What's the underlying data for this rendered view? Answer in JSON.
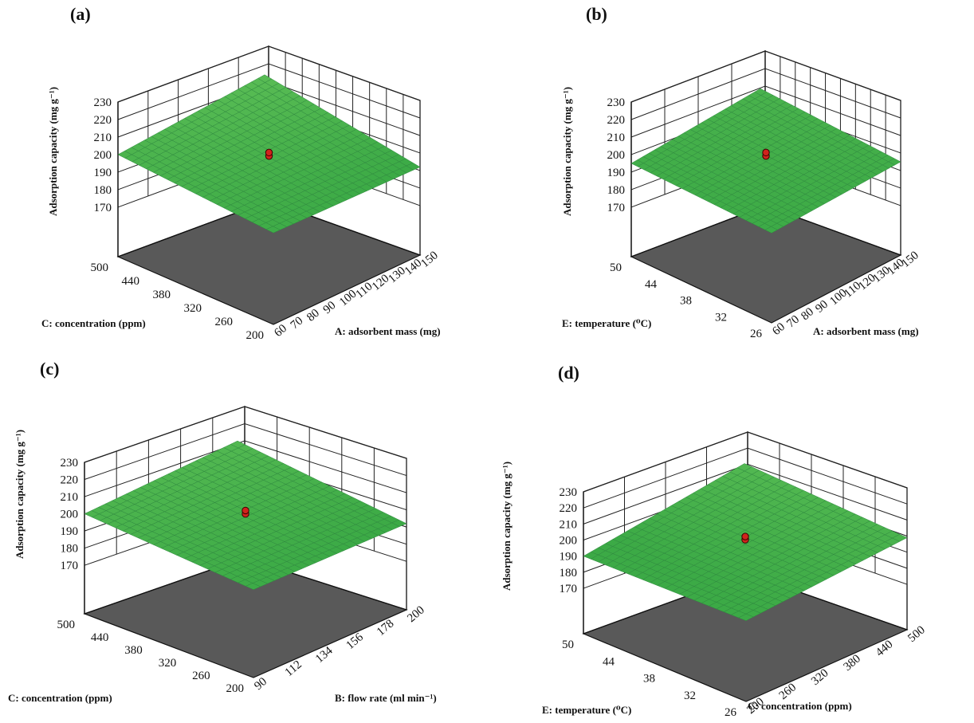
{
  "chart_data": [
    {
      "type": "surface",
      "panel_label": "(a)",
      "zlabel": "Adsorption capacity (mg g⁻¹)",
      "zlim": [
        170,
        230
      ],
      "zticks": [
        "170",
        "180",
        "190",
        "200",
        "210",
        "220",
        "230"
      ],
      "left_axis": {
        "label": "C: concentration (ppm)",
        "range": [
          200,
          500
        ],
        "ticks": [
          "500",
          "440",
          "380",
          "320",
          "260",
          "200"
        ]
      },
      "right_axis": {
        "label": "A: adsorbent mass (mg)",
        "range": [
          60,
          150
        ],
        "ticks": [
          "60",
          "70",
          "80",
          "90",
          "100",
          "110",
          "120",
          "130",
          "140",
          "150"
        ]
      },
      "surface_corners_z": {
        "left_far_high": 200,
        "front": 194,
        "right_far_high": 192,
        "back": 206
      },
      "center_points": [
        196,
        198
      ],
      "surface_color": "#3cb556",
      "contour_color": "#53d15a",
      "floor_color": "#595959"
    },
    {
      "type": "surface",
      "panel_label": "(b)",
      "zlabel": "Adsorption capacity (mg g⁻¹)",
      "zlim": [
        170,
        230
      ],
      "zticks": [
        "170",
        "180",
        "190",
        "200",
        "210",
        "220",
        "230"
      ],
      "left_axis": {
        "label": "E: temperature (⁰C)",
        "range": [
          26,
          50
        ],
        "ticks": [
          "50",
          "44",
          "38",
          "32",
          "26"
        ]
      },
      "right_axis": {
        "label": "A: adsorbent mass (mg)",
        "range": [
          60,
          150
        ],
        "ticks": [
          "60",
          "70",
          "80",
          "90",
          "100",
          "110",
          "120",
          "130",
          "140",
          "150"
        ]
      },
      "surface_corners_z": {
        "left_far_high": 195,
        "front": 193,
        "right_far_high": 195,
        "back": 199
      },
      "center_points": [
        196,
        198
      ],
      "surface_color": "#3cb556",
      "contour_color": "#53d15a",
      "floor_color": "#595959"
    },
    {
      "type": "surface",
      "panel_label": "(c)",
      "zlabel": "Adsorption capacity (mg g⁻¹)",
      "zlim": [
        170,
        230
      ],
      "zticks": [
        "170",
        "180",
        "190",
        "200",
        "210",
        "220",
        "230"
      ],
      "left_axis": {
        "label": "C: concentration (ppm)",
        "range": [
          200,
          500
        ],
        "ticks": [
          "500",
          "440",
          "380",
          "320",
          "260",
          "200"
        ]
      },
      "right_axis": {
        "label": "B: flow rate (ml min⁻¹)",
        "range": [
          90,
          200
        ],
        "ticks": [
          "90",
          "112",
          "134",
          "156",
          "178",
          "200"
        ]
      },
      "surface_corners_z": {
        "left_far_high": 200,
        "front": 193,
        "right_far_high": 192,
        "back": 203
      },
      "center_points": [
        196,
        198
      ],
      "surface_color": "#3cb556",
      "contour_color": "#53d15a",
      "floor_color": "#595959"
    },
    {
      "type": "surface",
      "panel_label": "(d)",
      "zlabel": "Adsorption capacity (mg g⁻¹)",
      "zlim": [
        170,
        230
      ],
      "zticks": [
        "170",
        "180",
        "190",
        "200",
        "210",
        "220",
        "230"
      ],
      "left_axis": {
        "label": "E: temperature (⁰C)",
        "range": [
          26,
          50
        ],
        "ticks": [
          "50",
          "44",
          "38",
          "32",
          "26"
        ]
      },
      "right_axis": {
        "label": "C: concentration (ppm)",
        "range": [
          200,
          500
        ],
        "ticks": [
          "200",
          "260",
          "320",
          "380",
          "440",
          "500"
        ]
      },
      "surface_corners_z": {
        "left_far_high": 190,
        "front": 192,
        "right_far_high": 199,
        "back": 203
      },
      "center_points": [
        196,
        198
      ],
      "surface_color": "#3cb556",
      "contour_color": "#53d15a",
      "floor_color": "#595959"
    }
  ]
}
